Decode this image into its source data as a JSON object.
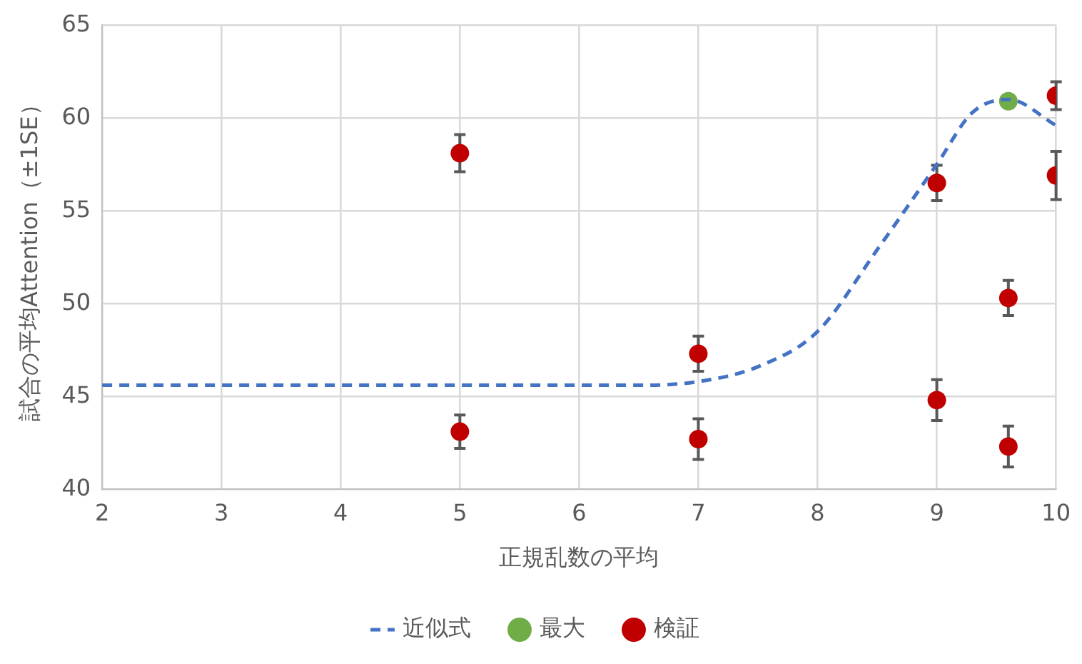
{
  "chart_data": {
    "type": "scatter",
    "xlabel": "正規乱数の平均",
    "ylabel": "試合の平均Attention（±1SE）",
    "xlim": [
      2,
      10
    ],
    "xticks": [
      2,
      3,
      4,
      5,
      6,
      7,
      8,
      9,
      10
    ],
    "ylim": [
      40,
      65
    ],
    "yticks": [
      40,
      45,
      50,
      55,
      60,
      65
    ],
    "grid": true,
    "legend": "bottom",
    "series": [
      {
        "name": "近似式",
        "type": "line",
        "color": "#4472c4",
        "line_style": "dashed",
        "marker": "none",
        "x": [
          2,
          6.5,
          7,
          7.5,
          8,
          8.5,
          9,
          9.3,
          9.6,
          10
        ],
        "values": [
          45.6,
          45.6,
          45.8,
          46.6,
          48.5,
          52.9,
          57.5,
          60.3,
          61.0,
          59.6
        ]
      },
      {
        "name": "最大",
        "type": "scatter",
        "color": "#70ad47",
        "marker": "circle",
        "x": [
          9.6
        ],
        "values": [
          60.9
        ]
      },
      {
        "name": "検証",
        "type": "scatter",
        "color": "#c00000",
        "marker": "circle",
        "x": [
          5,
          5,
          7,
          7,
          9,
          9,
          9.6,
          9.6,
          10,
          10
        ],
        "values": [
          58.1,
          43.1,
          47.3,
          42.7,
          56.5,
          44.8,
          50.3,
          42.3,
          61.2,
          56.9
        ],
        "errors": [
          1.0,
          0.9,
          0.95,
          1.1,
          0.95,
          1.1,
          0.95,
          1.1,
          0.75,
          1.3
        ]
      }
    ]
  }
}
